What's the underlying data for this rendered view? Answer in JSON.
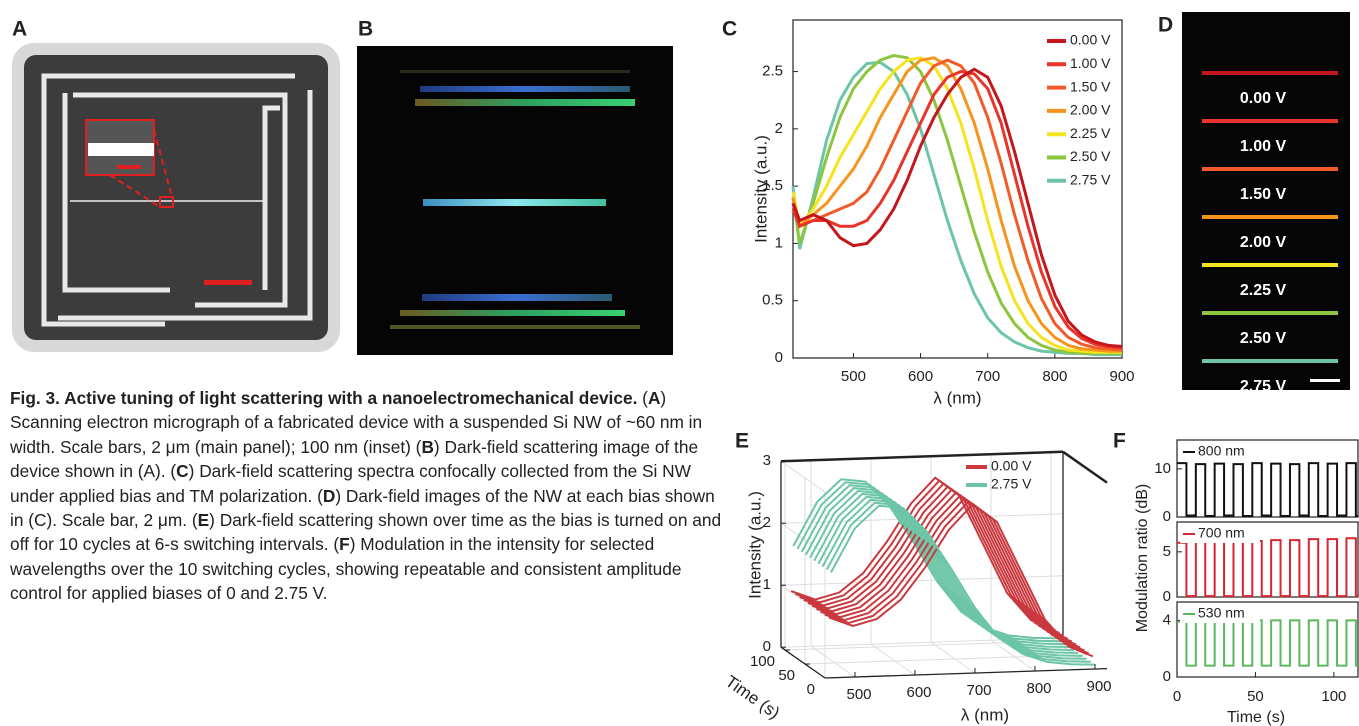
{
  "panel_labels": [
    "A",
    "B",
    "C",
    "D",
    "E",
    "F"
  ],
  "panel_d": {
    "labels": [
      "0.00 V",
      "1.00 V",
      "1.50 V",
      "2.00 V",
      "2.25 V",
      "2.50 V",
      "2.75 V"
    ]
  },
  "caption": {
    "title": "Fig. 3. Active tuning of light scattering with a nanoelectromechanical device.",
    "body": [
      " (",
      "A",
      ") Scanning electron micrograph of a fabricated device with a suspended Si NW of ~60 nm in width. Scale bars, 2 μm (main panel); 100 nm (inset) (",
      "B",
      ") Dark-field scattering image of the device shown in (A). (",
      "C",
      ") Dark-field scattering spectra confocally collected from the Si NW under applied bias and TM polarization. (",
      "D",
      ") Dark-field images of the NW at each bias shown in (C). Scale bar, 2 μm. (",
      "E",
      ") Dark-field scattering shown over time as the bias is turned on and off for 10 cycles at 6-s switching intervals. (",
      "F",
      ") Modulation in the intensity for selected wavelengths over the 10 switching cycles, showing repeatable and consistent amplitude control for applied biases of 0 and 2.75 V."
    ]
  },
  "chart_data": [
    {
      "type": "line",
      "xlabel": "λ (nm)",
      "ylabel": "Intensity (a.u.)",
      "legend": "upper right",
      "x": [
        410,
        420,
        440,
        460,
        480,
        500,
        520,
        540,
        560,
        580,
        600,
        620,
        640,
        660,
        680,
        700,
        720,
        740,
        760,
        780,
        800,
        820,
        840,
        860,
        880,
        900
      ],
      "xlim": [
        410,
        900
      ],
      "xticks": [
        500,
        600,
        700,
        800,
        900
      ],
      "ylim": [
        0,
        2.95
      ],
      "yticks": [
        0,
        0.5,
        1,
        1.5,
        2,
        2.5
      ],
      "series": [
        {
          "name": "0.00 V",
          "color": "#c4161c",
          "values": [
            1.35,
            1.2,
            1.25,
            1.2,
            1.05,
            0.98,
            1.0,
            1.12,
            1.3,
            1.55,
            1.85,
            2.1,
            2.3,
            2.45,
            2.52,
            2.45,
            2.2,
            1.8,
            1.35,
            0.9,
            0.55,
            0.32,
            0.2,
            0.14,
            0.11,
            0.1
          ]
        },
        {
          "name": "1.00 V",
          "color": "#e8342a",
          "values": [
            1.3,
            1.15,
            1.2,
            1.2,
            1.15,
            1.15,
            1.2,
            1.35,
            1.55,
            1.8,
            2.05,
            2.3,
            2.45,
            2.5,
            2.48,
            2.35,
            2.05,
            1.6,
            1.15,
            0.75,
            0.45,
            0.27,
            0.17,
            0.12,
            0.1,
            0.09
          ]
        },
        {
          "name": "1.50 V",
          "color": "#f15a29",
          "values": [
            1.35,
            1.15,
            1.2,
            1.25,
            1.3,
            1.35,
            1.45,
            1.65,
            1.9,
            2.15,
            2.4,
            2.55,
            2.6,
            2.55,
            2.4,
            2.1,
            1.7,
            1.25,
            0.85,
            0.52,
            0.3,
            0.18,
            0.12,
            0.09,
            0.08,
            0.07
          ]
        },
        {
          "name": "2.00 V",
          "color": "#f7941d",
          "values": [
            1.4,
            1.15,
            1.25,
            1.35,
            1.5,
            1.65,
            1.85,
            2.1,
            2.3,
            2.5,
            2.6,
            2.62,
            2.55,
            2.35,
            2.05,
            1.65,
            1.2,
            0.8,
            0.5,
            0.3,
            0.18,
            0.11,
            0.08,
            0.07,
            0.06,
            0.06
          ]
        },
        {
          "name": "2.25 V",
          "color": "#f4e31e",
          "values": [
            1.45,
            1.15,
            1.3,
            1.5,
            1.75,
            1.95,
            2.15,
            2.35,
            2.5,
            2.6,
            2.62,
            2.55,
            2.35,
            2.05,
            1.65,
            1.2,
            0.8,
            0.5,
            0.3,
            0.18,
            0.11,
            0.07,
            0.06,
            0.05,
            0.05,
            0.05
          ]
        },
        {
          "name": "2.50 V",
          "color": "#8cc63f",
          "values": [
            1.4,
            1.0,
            1.35,
            1.75,
            2.1,
            2.35,
            2.5,
            2.6,
            2.64,
            2.62,
            2.5,
            2.25,
            1.9,
            1.5,
            1.1,
            0.75,
            0.48,
            0.3,
            0.18,
            0.11,
            0.07,
            0.05,
            0.04,
            0.04,
            0.04,
            0.04
          ]
        },
        {
          "name": "2.75 V",
          "color": "#6cc5a7",
          "values": [
            1.5,
            0.95,
            1.4,
            1.9,
            2.25,
            2.45,
            2.57,
            2.58,
            2.5,
            2.3,
            2.0,
            1.6,
            1.2,
            0.85,
            0.56,
            0.35,
            0.22,
            0.14,
            0.09,
            0.06,
            0.05,
            0.04,
            0.04,
            0.03,
            0.03,
            0.03
          ]
        }
      ]
    },
    {
      "type": "waterfall",
      "xlabel": "λ (nm)",
      "zlabel": "Intensity (a.u.)",
      "tlabel": "Time (s)",
      "grid": true,
      "legend": "upper right",
      "x": [
        460,
        500,
        540,
        580,
        620,
        660,
        700,
        740,
        780,
        820,
        860,
        900
      ],
      "xlim": [
        450,
        920
      ],
      "xticks": [
        500,
        600,
        700,
        800,
        900
      ],
      "zlim": [
        0,
        3
      ],
      "zticks": [
        0,
        1,
        2,
        3
      ],
      "tlim": [
        0,
        110
      ],
      "tticks": [
        0,
        50,
        100
      ],
      "series": [
        {
          "name": "0.00 V",
          "color": "#c9393f",
          "values": [
            0.95,
            0.8,
            0.9,
            1.2,
            1.7,
            2.3,
            2.7,
            2.4,
            1.6,
            0.8,
            0.35,
            0.18
          ]
        },
        {
          "name": "2.75 V",
          "color": "#6cc5a7",
          "values": [
            1.7,
            2.4,
            2.75,
            2.7,
            2.3,
            1.7,
            1.05,
            0.55,
            0.28,
            0.14,
            0.09,
            0.07
          ]
        }
      ]
    },
    {
      "type": "step",
      "xlabel": "Time (s)",
      "ylabel": "Modulation ratio (dB)",
      "x": [
        0,
        6,
        12,
        18,
        24,
        30,
        36,
        42,
        48,
        54,
        60,
        66,
        72,
        78,
        84,
        90,
        96,
        102,
        108,
        114
      ],
      "xlim": [
        0,
        116
      ],
      "xticks": [
        0,
        50,
        100
      ],
      "series": [
        {
          "name": "800 nm",
          "color": "#111111",
          "ylim": [
            0,
            16
          ],
          "yticks": [
            0,
            10
          ],
          "values": [
            11.2,
            0.3,
            11.0,
            0.2,
            11.1,
            0.3,
            11.0,
            0.2,
            11.2,
            0.3,
            11.1,
            0.2,
            11.0,
            0.3,
            11.2,
            0.2,
            11.1,
            0.3,
            11.2,
            0.2
          ]
        },
        {
          "name": "700 nm",
          "color": "#d7262e",
          "ylim": [
            0,
            8.3
          ],
          "yticks": [
            0,
            5
          ],
          "values": [
            6.0,
            0.1,
            6.1,
            0.1,
            6.1,
            0.1,
            6.2,
            0.1,
            6.2,
            0.1,
            6.3,
            0.1,
            6.3,
            0.1,
            6.4,
            0.1,
            6.4,
            0.1,
            6.5,
            0.1
          ]
        },
        {
          "name": "530 nm",
          "color": "#5cb85c",
          "ylim": [
            0,
            5.3
          ],
          "yticks": [
            0,
            4
          ],
          "values": [
            3.9,
            0.8,
            4.0,
            0.8,
            4.0,
            0.8,
            4.0,
            0.8,
            4.0,
            0.8,
            4.0,
            0.8,
            4.0,
            0.8,
            4.0,
            0.8,
            4.0,
            0.8,
            4.0,
            0.8
          ]
        }
      ]
    }
  ]
}
